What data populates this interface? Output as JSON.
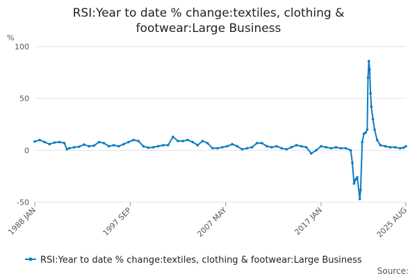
{
  "chart_data": {
    "type": "line",
    "title_line1": "RSI:Year to date % change:textiles, clothing &",
    "title_line2": "footwear:Large Business",
    "unit": "%",
    "x_tick_labels": [
      "1988 JAN",
      "1997 SEP",
      "2007 MAY",
      "2017 JAN",
      "2025 AUG"
    ],
    "y_ticks": [
      100,
      50,
      0,
      -50
    ],
    "ylim": [
      -50,
      100
    ],
    "grid": true,
    "legend_position": "bottom",
    "source_label": "Source:",
    "colors": {
      "series": "#0a7bc1",
      "grid": "#e3e3e3"
    },
    "series": [
      {
        "name": "RSI:Year to date % change:textiles, clothing & footwear:Large Business",
        "points": [
          [
            "1988 JAN",
            8.5
          ],
          [
            "1988 JUL",
            10
          ],
          [
            "1989 JAN",
            8
          ],
          [
            "1989 JUL",
            6
          ],
          [
            "1990 JAN",
            7.5
          ],
          [
            "1990 JUL",
            8
          ],
          [
            "1991 JAN",
            7
          ],
          [
            "1991 APR",
            1
          ],
          [
            "1991 JUL",
            2
          ],
          [
            "1992 JAN",
            3
          ],
          [
            "1992 JUL",
            3.5
          ],
          [
            "1993 JAN",
            5.5
          ],
          [
            "1993 JUL",
            4
          ],
          [
            "1994 JAN",
            4.5
          ],
          [
            "1994 JUL",
            8
          ],
          [
            "1995 JAN",
            7
          ],
          [
            "1995 JUL",
            4
          ],
          [
            "1996 JAN",
            5
          ],
          [
            "1996 JUL",
            4
          ],
          [
            "1997 JAN",
            6
          ],
          [
            "1997 JUL",
            8
          ],
          [
            "1998 JAN",
            10
          ],
          [
            "1998 JUL",
            9
          ],
          [
            "1999 JAN",
            4
          ],
          [
            "1999 JUL",
            2.5
          ],
          [
            "2000 JAN",
            3
          ],
          [
            "2000 JUL",
            4
          ],
          [
            "2001 JAN",
            5
          ],
          [
            "2001 JUL",
            5
          ],
          [
            "2002 JAN",
            13
          ],
          [
            "2002 JUL",
            9
          ],
          [
            "2003 JAN",
            9
          ],
          [
            "2003 JUL",
            10
          ],
          [
            "2004 JAN",
            8
          ],
          [
            "2004 JUL",
            5
          ],
          [
            "2005 JAN",
            9
          ],
          [
            "2005 JUL",
            7
          ],
          [
            "2006 JAN",
            2
          ],
          [
            "2006 JUL",
            2
          ],
          [
            "2007 JAN",
            3
          ],
          [
            "2007 JUL",
            4
          ],
          [
            "2008 JAN",
            6
          ],
          [
            "2008 JUL",
            4
          ],
          [
            "2009 JAN",
            1
          ],
          [
            "2009 JUL",
            2
          ],
          [
            "2010 JAN",
            3
          ],
          [
            "2010 JUL",
            7
          ],
          [
            "2011 JAN",
            7
          ],
          [
            "2011 JUL",
            4
          ],
          [
            "2012 JAN",
            3
          ],
          [
            "2012 JUL",
            4
          ],
          [
            "2013 JAN",
            2
          ],
          [
            "2013 JUL",
            1
          ],
          [
            "2014 JAN",
            3
          ],
          [
            "2014 JUL",
            5
          ],
          [
            "2015 JAN",
            4
          ],
          [
            "2015 JUL",
            3
          ],
          [
            "2016 JAN",
            -3
          ],
          [
            "2016 JUL",
            0
          ],
          [
            "2017 JAN",
            4
          ],
          [
            "2017 JUL",
            3
          ],
          [
            "2018 JAN",
            2
          ],
          [
            "2018 JUL",
            3
          ],
          [
            "2019 JAN",
            2
          ],
          [
            "2019 JUL",
            2
          ],
          [
            "2020 JAN",
            0
          ],
          [
            "2020 MAR",
            -12
          ],
          [
            "2020 MAY",
            -32
          ],
          [
            "2020 JUL",
            -28
          ],
          [
            "2020 SEP",
            -26
          ],
          [
            "2020 DEC",
            -47
          ],
          [
            "2021 JAN",
            -38
          ],
          [
            "2021 MAR",
            8
          ],
          [
            "2021 MAY",
            16
          ],
          [
            "2021 JUL",
            17
          ],
          [
            "2021 SEP",
            20
          ],
          [
            "2021 OCT",
            70
          ],
          [
            "2021 NOV",
            86
          ],
          [
            "2021 DEC",
            78
          ],
          [
            "2022 JAN",
            55
          ],
          [
            "2022 FEB",
            42
          ],
          [
            "2022 APR",
            30
          ],
          [
            "2022 JUN",
            20
          ],
          [
            "2022 SEP",
            10
          ],
          [
            "2023 JAN",
            5
          ],
          [
            "2023 JUL",
            4
          ],
          [
            "2024 JAN",
            3
          ],
          [
            "2024 JUL",
            3
          ],
          [
            "2025 JAN",
            2
          ],
          [
            "2025 MAY",
            2.5
          ],
          [
            "2025 AUG",
            4
          ]
        ]
      }
    ]
  }
}
